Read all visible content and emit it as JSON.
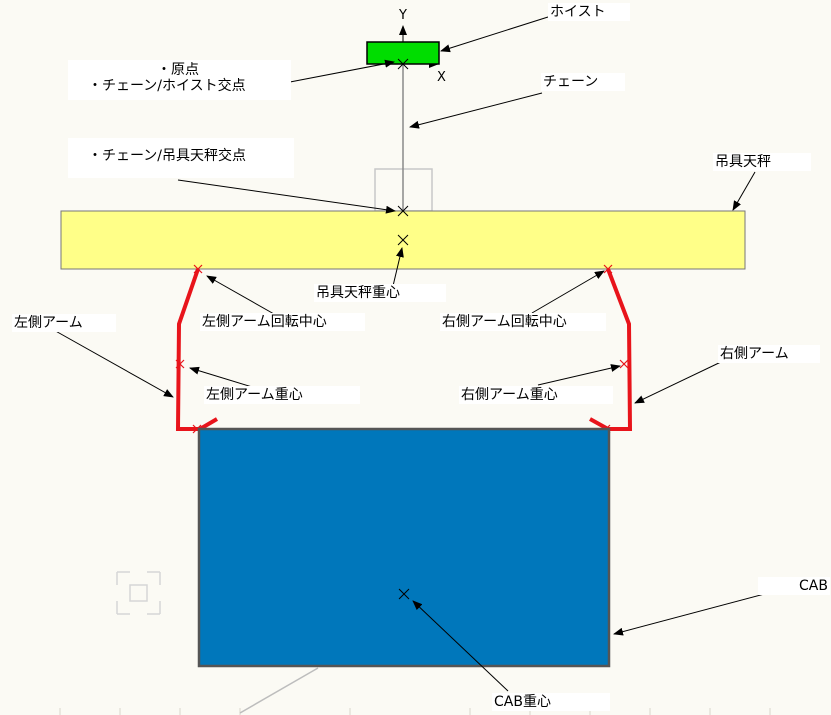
{
  "labels": {
    "hoist": "ホイスト",
    "y_axis": "Y",
    "x_axis": "X",
    "origin": "・原点",
    "chain_hoist_intersection": "・チェーン/ホイスト交点",
    "chain": "チェーン",
    "chain_spreader_intersection": "・チェーン/吊具天秤交点",
    "spreader": "吊具天秤",
    "spreader_cog": "吊具天秤重心",
    "left_arm": "左側アーム",
    "left_arm_pivot": "左側アーム回転中心",
    "right_arm_pivot": "右側アーム回転中心",
    "right_arm": "右側アーム",
    "left_arm_cog": "左側アーム重心",
    "right_arm_cog": "右側アーム重心",
    "cab": "CAB",
    "cab_cog": "CAB重心"
  },
  "colors": {
    "hoist": "#00dd00",
    "spreader": "#ffff88",
    "arm": "#e8141b",
    "cab": "#0077bb",
    "leader": "#000000"
  }
}
